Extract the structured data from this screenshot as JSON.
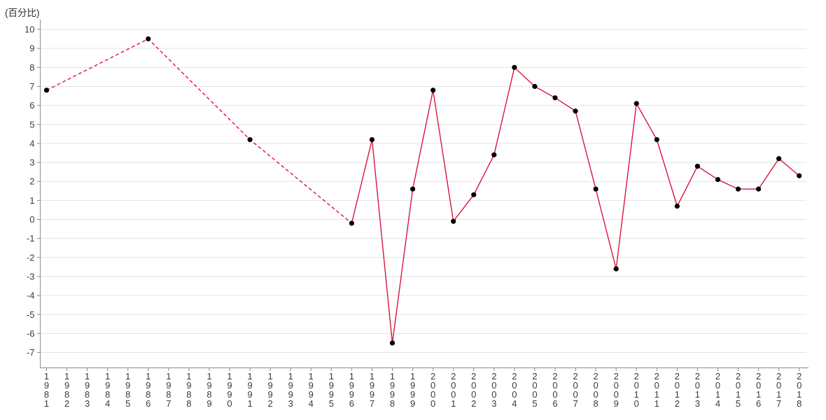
{
  "title": "(百分比)",
  "colors": {
    "line": "#dc143c",
    "marker": "#000000",
    "grid": "#e3e3e3",
    "axis": "#8c8c8c",
    "text": "#3a3a3a"
  },
  "chart_data": {
    "type": "line",
    "title": "",
    "ylabel": "(百分比)",
    "xlabel": "",
    "categories": [
      "1981",
      "1982",
      "1983",
      "1984",
      "1985",
      "1986",
      "1987",
      "1988",
      "1989",
      "1990",
      "1991",
      "1992",
      "1993",
      "1994",
      "1995",
      "1996",
      "1997",
      "1998",
      "1999",
      "2000",
      "2001",
      "2002",
      "2003",
      "2004",
      "2005",
      "2006",
      "2007",
      "2008",
      "2009",
      "2010",
      "2011",
      "2012",
      "2013",
      "2014",
      "2015",
      "2016",
      "2017",
      "2018"
    ],
    "ylim": [
      -7,
      10
    ],
    "ytick_step": 1,
    "grid": true,
    "legend_position": "none",
    "series": [
      {
        "name": "百分比",
        "marker": "filled-circle",
        "x": [
          "1981",
          "1986",
          "1991",
          "1996",
          "1997",
          "1998",
          "1999",
          "2000",
          "2001",
          "2002",
          "2003",
          "2004",
          "2005",
          "2006",
          "2007",
          "2008",
          "2009",
          "2010",
          "2011",
          "2012",
          "2013",
          "2014",
          "2015",
          "2016",
          "2017",
          "2018"
        ],
        "values": [
          6.8,
          9.5,
          4.2,
          -0.2,
          4.2,
          -6.5,
          1.6,
          6.8,
          -0.1,
          1.3,
          3.4,
          8.0,
          7.0,
          6.4,
          5.7,
          1.6,
          -2.6,
          6.1,
          4.2,
          0.7,
          2.8,
          2.1,
          1.6,
          1.6,
          3.2,
          2.3
        ],
        "dashed_range": [
          "1981",
          "1996"
        ],
        "solid_range": [
          "1996",
          "2018"
        ]
      }
    ]
  }
}
